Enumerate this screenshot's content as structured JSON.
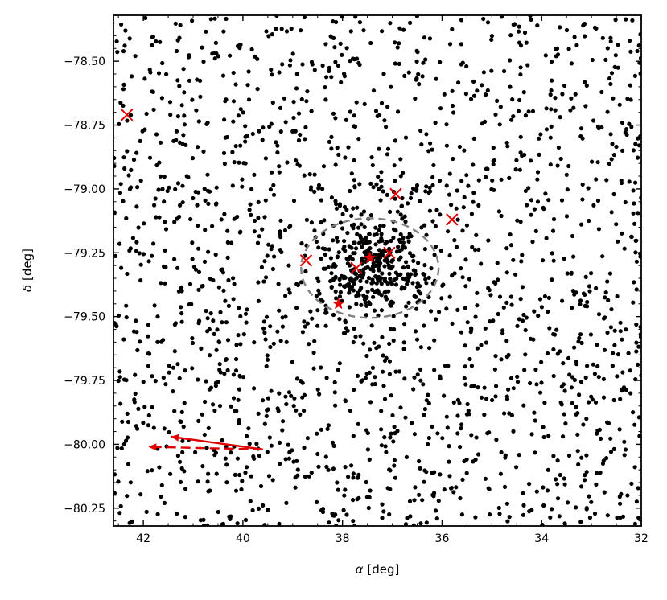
{
  "chart_data": {
    "type": "scatter",
    "xlabel_symbol": "α",
    "xlabel_unit": "[deg]",
    "ylabel_symbol": "δ",
    "ylabel_unit": "[deg]",
    "xlim": [
      42.6,
      32.0
    ],
    "ylim": [
      -80.32,
      -78.32
    ],
    "x_inverted": true,
    "xticks": [
      42,
      40,
      38,
      36,
      34,
      32
    ],
    "xtick_labels": [
      "42",
      "40",
      "38",
      "36",
      "34",
      "32"
    ],
    "yticks": [
      -78.5,
      -78.75,
      -79.0,
      -79.25,
      -79.5,
      -79.75,
      -80.0,
      -80.25
    ],
    "ytick_labels": [
      "−78.50",
      "−78.75",
      "−79.00",
      "−79.25",
      "−79.50",
      "−79.75",
      "−80.00",
      "−80.25"
    ],
    "grid": false,
    "colors": {
      "field": "#000000",
      "highlight": "#e00000",
      "ellipse": "#808080"
    },
    "field_stars": {
      "marker": "dot",
      "description_count": 2100,
      "background_density": "uniform",
      "cluster_center": [
        37.45,
        -79.31
      ],
      "cluster_extent_deg": [
        0.9,
        0.18
      ]
    },
    "ellipse": {
      "center": [
        37.45,
        -79.31
      ],
      "semi_axis_ra": 1.38,
      "semi_axis_dec": 0.195,
      "style": "dashed"
    },
    "x_markers": [
      {
        "x": 42.33,
        "y": -78.71
      },
      {
        "x": 36.93,
        "y": -79.02
      },
      {
        "x": 35.8,
        "y": -79.12
      },
      {
        "x": 38.73,
        "y": -79.28
      },
      {
        "x": 37.06,
        "y": -79.25
      },
      {
        "x": 37.72,
        "y": -79.31
      }
    ],
    "star_markers": [
      {
        "x": 37.45,
        "y": -79.27
      },
      {
        "x": 38.08,
        "y": -79.45
      }
    ],
    "proper_motion_arrows": [
      {
        "style": "solid",
        "from": [
          39.6,
          -80.02
        ],
        "to": [
          41.45,
          -79.97
        ]
      },
      {
        "style": "dashed",
        "from": [
          39.6,
          -80.02
        ],
        "to": [
          41.9,
          -80.01
        ]
      }
    ]
  }
}
